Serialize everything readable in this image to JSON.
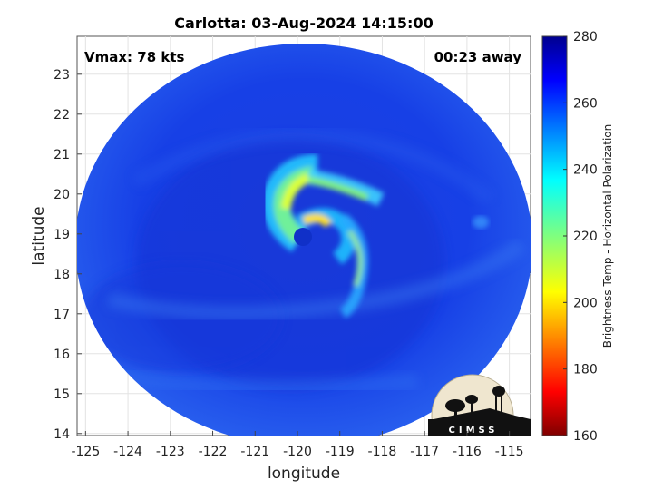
{
  "chart_data": {
    "type": "heatmap",
    "title": "Carlotta: 03-Aug-2024 14:15:00",
    "xlabel": "longitude",
    "ylabel": "latitude",
    "xlim": [
      -125.2,
      -114.5
    ],
    "ylim": [
      13.95,
      23.95
    ],
    "x_ticks": [
      -125,
      -124,
      -123,
      -122,
      -121,
      -120,
      -119,
      -118,
      -117,
      -116,
      -115
    ],
    "y_ticks": [
      14,
      15,
      16,
      17,
      18,
      19,
      20,
      21,
      22,
      23
    ],
    "grid": true,
    "annotations": {
      "vmax": "Vmax: 78 kts",
      "time_offset": "00:23 away"
    },
    "colorbar": {
      "label": "Brightness Temp - Horizontal Polarization",
      "range": [
        160,
        280
      ],
      "ticks": [
        160,
        180,
        200,
        220,
        240,
        260,
        280
      ],
      "colormap": "jet"
    },
    "storm": {
      "eye_center": [
        -119.8,
        18.9
      ],
      "eye_value": 258,
      "background_value": 262,
      "min_band_value": 205
    },
    "logo_text": "CIMSS"
  }
}
